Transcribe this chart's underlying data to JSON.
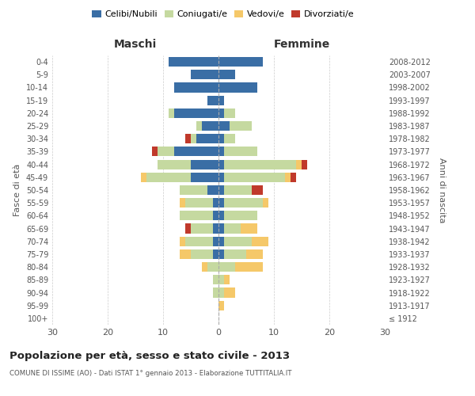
{
  "age_groups": [
    "100+",
    "95-99",
    "90-94",
    "85-89",
    "80-84",
    "75-79",
    "70-74",
    "65-69",
    "60-64",
    "55-59",
    "50-54",
    "45-49",
    "40-44",
    "35-39",
    "30-34",
    "25-29",
    "20-24",
    "15-19",
    "10-14",
    "5-9",
    "0-4"
  ],
  "birth_years": [
    "≤ 1912",
    "1913-1917",
    "1918-1922",
    "1923-1927",
    "1928-1932",
    "1933-1937",
    "1938-1942",
    "1943-1947",
    "1948-1952",
    "1953-1957",
    "1958-1962",
    "1963-1967",
    "1968-1972",
    "1973-1977",
    "1978-1982",
    "1983-1987",
    "1988-1992",
    "1993-1997",
    "1998-2002",
    "2003-2007",
    "2008-2012"
  ],
  "maschi": {
    "celibi": [
      0,
      0,
      0,
      0,
      0,
      1,
      1,
      1,
      1,
      1,
      2,
      5,
      5,
      8,
      4,
      3,
      8,
      2,
      8,
      5,
      9
    ],
    "coniugati": [
      0,
      0,
      1,
      1,
      2,
      4,
      5,
      4,
      6,
      5,
      5,
      8,
      6,
      3,
      1,
      1,
      1,
      0,
      0,
      0,
      0
    ],
    "vedovi": [
      0,
      0,
      0,
      0,
      1,
      2,
      1,
      0,
      0,
      1,
      0,
      1,
      0,
      0,
      0,
      0,
      0,
      0,
      0,
      0,
      0
    ],
    "divorziati": [
      0,
      0,
      0,
      0,
      0,
      0,
      0,
      1,
      0,
      0,
      0,
      0,
      0,
      1,
      1,
      0,
      0,
      0,
      0,
      0,
      0
    ]
  },
  "femmine": {
    "nubili": [
      0,
      0,
      0,
      0,
      0,
      1,
      1,
      1,
      1,
      1,
      1,
      1,
      1,
      1,
      1,
      2,
      1,
      1,
      7,
      3,
      8
    ],
    "coniugate": [
      0,
      0,
      1,
      1,
      3,
      4,
      5,
      3,
      6,
      7,
      5,
      11,
      13,
      6,
      2,
      4,
      2,
      0,
      0,
      0,
      0
    ],
    "vedove": [
      0,
      1,
      2,
      1,
      5,
      3,
      3,
      3,
      0,
      1,
      0,
      1,
      1,
      0,
      0,
      0,
      0,
      0,
      0,
      0,
      0
    ],
    "divorziate": [
      0,
      0,
      0,
      0,
      0,
      0,
      0,
      0,
      0,
      0,
      2,
      1,
      1,
      0,
      0,
      0,
      0,
      0,
      0,
      0,
      0
    ]
  },
  "colors": {
    "celibi": "#3a6ea5",
    "coniugati": "#c5d9a0",
    "vedovi": "#f5c869",
    "divorziati": "#c0392b"
  },
  "title": "Popolazione per età, sesso e stato civile - 2013",
  "subtitle": "COMUNE DI ISSIME (AO) - Dati ISTAT 1° gennaio 2013 - Elaborazione TUTTITALIA.IT",
  "xlabel_left": "Maschi",
  "xlabel_right": "Femmine",
  "ylabel_left": "Fasce di età",
  "ylabel_right": "Anni di nascita",
  "xlim": 30,
  "legend_labels": [
    "Celibi/Nubili",
    "Coniugati/e",
    "Vedovi/e",
    "Divorziati/e"
  ],
  "bg_color": "#ffffff",
  "grid_color": "#cccccc"
}
